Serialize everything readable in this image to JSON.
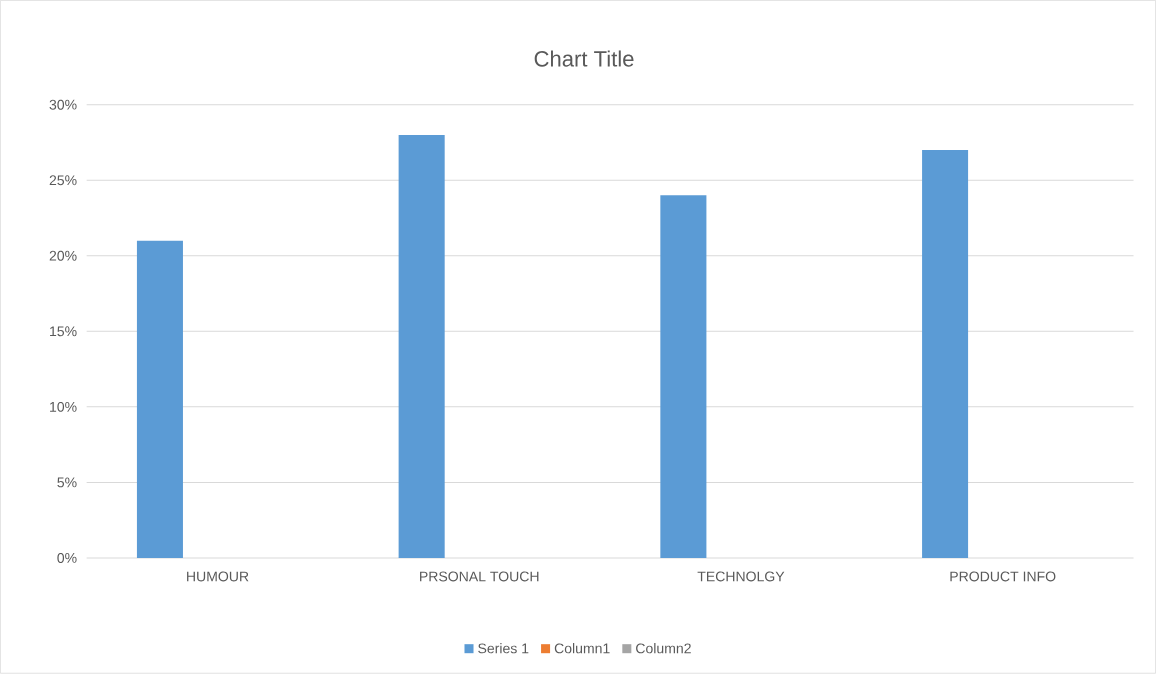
{
  "chart_data": {
    "type": "bar",
    "title": "Chart Title",
    "categories": [
      "HUMOUR",
      "PRSONAL TOUCH",
      "TECHNOLGY",
      "PRODUCT INFO"
    ],
    "series": [
      {
        "name": "Series 1",
        "color": "#5b9bd5",
        "values": [
          21,
          28,
          24,
          27
        ]
      },
      {
        "name": "Column1",
        "color": "#ed7d31",
        "values": [
          null,
          null,
          null,
          null
        ]
      },
      {
        "name": "Column2",
        "color": "#a5a5a5",
        "values": [
          null,
          null,
          null,
          null
        ]
      }
    ],
    "ylim": [
      0,
      30
    ],
    "yticks": [
      {
        "value": 0,
        "label": "0%"
      },
      {
        "value": 5,
        "label": "5%"
      },
      {
        "value": 10,
        "label": "10%"
      },
      {
        "value": 15,
        "label": "15%"
      },
      {
        "value": 20,
        "label": "20%"
      },
      {
        "value": 25,
        "label": "25%"
      },
      {
        "value": 30,
        "label": "30%"
      }
    ],
    "grid": "y",
    "legend": "bottom"
  }
}
